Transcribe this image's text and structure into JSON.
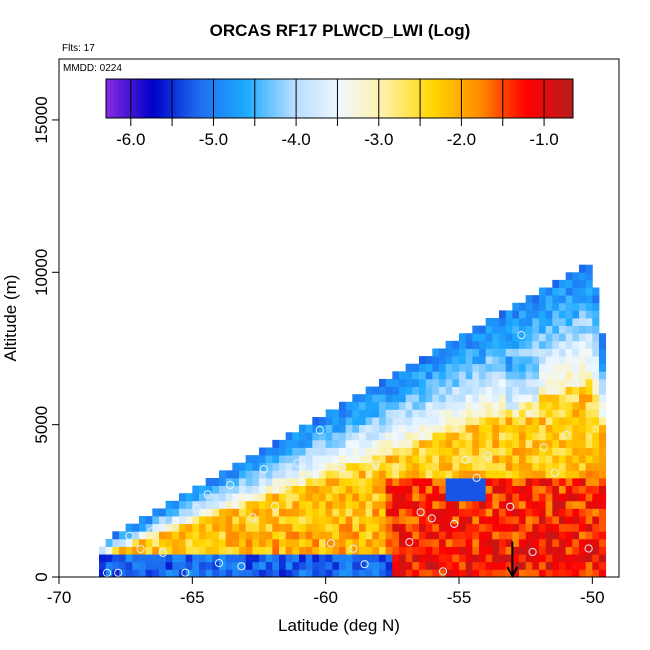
{
  "chart_data": {
    "type": "heatmap",
    "title": "ORCAS RF17 PLWCD_LWI (Log)",
    "annotations": {
      "flights": "Flts: 17",
      "date": "MMDD: 0224"
    },
    "xlabel": "Latitude (deg N)",
    "ylabel": "Altitude (m)",
    "xlim": [
      -70,
      -49
    ],
    "ylim": [
      0,
      17000
    ],
    "x_ticks": [
      -70,
      -65,
      -60,
      -55,
      -50
    ],
    "y_ticks": [
      0,
      5000,
      10000,
      15000
    ],
    "x_tick_labels": [
      "-70",
      "-65",
      "-60",
      "-55",
      "-50"
    ],
    "y_tick_labels": [
      "0",
      "5000",
      "10000",
      "15000"
    ],
    "colorbar": {
      "range": [
        -6.3,
        -0.65
      ],
      "ticks": [
        -6.0,
        -5.0,
        -4.0,
        -3.0,
        -2.0,
        -1.0
      ],
      "tick_labels": [
        "-6.0",
        "-5.0",
        "-4.0",
        "-3.0",
        "-2.0",
        "-1.0"
      ],
      "minor_ticks": [
        -6.0,
        -5.5,
        -5.0,
        -4.5,
        -4.0,
        -3.5,
        -3.0,
        -2.5,
        -2.0,
        -1.5,
        -1.0
      ],
      "colors": [
        "#8a2be2",
        "#0000c8",
        "#1e6ef0",
        "#1eaaff",
        "#b4dcff",
        "#f0f8ff",
        "#fff0a0",
        "#ffd700",
        "#ff8c00",
        "#ff0000",
        "#b41e1e"
      ]
    },
    "field": {
      "lat_start": -68.5,
      "lat_end": -49.6,
      "lat_step": 0.25,
      "alt_step": 250,
      "top_altitude_at_south_edge": 1000,
      "top_altitude_at_north_edge": 10500,
      "description_levels": {
        "near_surface_south": -5.2,
        "free_troposphere_low": -2.0,
        "cloud_layer_core": -1.2,
        "upper_edge": -4.3
      }
    },
    "marker": {
      "type": "arrow-down",
      "lat": -53,
      "alt_from": 700,
      "alt_to": 0
    },
    "markers_circles_color": "#e0f0ff"
  }
}
